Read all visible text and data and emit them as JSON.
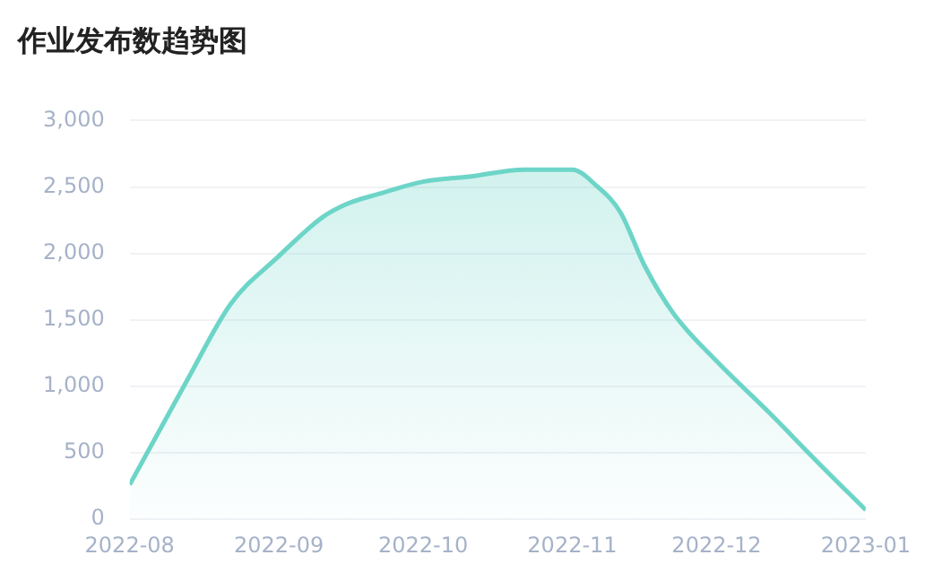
{
  "chart_data": {
    "type": "area",
    "title": "作业发布数趋势图",
    "x": [
      "2022-08-01",
      "2022-08-13",
      "2022-08-22",
      "2022-09-01",
      "2022-09-10",
      "2022-09-15",
      "2022-09-22",
      "2022-10-01",
      "2022-10-11",
      "2022-10-22",
      "2022-11-01",
      "2022-11-06",
      "2022-11-11",
      "2022-11-16",
      "2022-11-22",
      "2022-12-01",
      "2022-12-12",
      "2022-12-22",
      "2023-01-01"
    ],
    "series": [
      {
        "color": "#6dd5c8",
        "values": [
          260,
          1050,
          1620,
          1980,
          2270,
          2370,
          2450,
          2540,
          2580,
          2630,
          2630,
          2510,
          2310,
          1910,
          1550,
          1190,
          800,
          430,
          70
        ]
      }
    ],
    "xlim": [
      "2022-08",
      "2023-01"
    ],
    "xticks": [
      "2022-08",
      "2022-09",
      "2022-10",
      "2022-11",
      "2022-12",
      "2023-01"
    ],
    "ylim": [
      0,
      3000
    ],
    "yticks": [
      0,
      500,
      {
        "value": 1000,
        "label": "1,000"
      },
      {
        "value": 1500,
        "label": "1,500"
      },
      {
        "value": 2000,
        "label": "2,000"
      },
      {
        "value": 2500,
        "label": "2,500"
      },
      {
        "value": 3000,
        "label": "3,000"
      }
    ],
    "grid": "y",
    "marker": "none"
  }
}
